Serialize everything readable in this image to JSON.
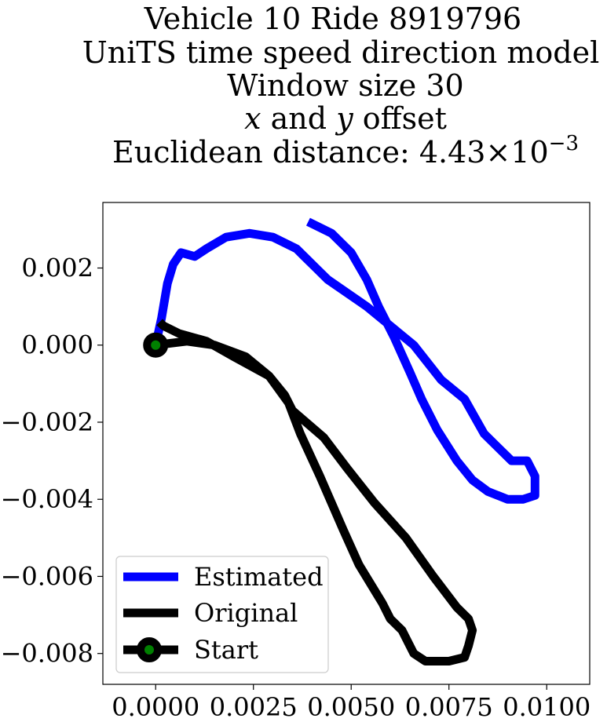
{
  "chart_data": {
    "type": "line",
    "title_lines": [
      "Vehicle 10 Ride 8919796",
      "UniTS time speed direction model",
      "Window size 30",
      "x and y offset",
      "Euclidean distance: 4.43×10⁻³"
    ],
    "title_italic_line": {
      "var1": "x",
      "middle": " and ",
      "var2": "y",
      "suffix": " offset"
    },
    "title_distance": {
      "prefix": "Euclidean distance: ",
      "mantissa": "4.43",
      "times": "×",
      "base": "10",
      "exponent": "−3"
    },
    "xlabel": "",
    "ylabel": "",
    "xlim": [
      -0.00135,
      0.0111
    ],
    "ylim": [
      -0.0088,
      0.0037
    ],
    "xticks": [
      0.0,
      0.0025,
      0.005,
      0.0075,
      0.01
    ],
    "xtick_labels": [
      "0.0000",
      "0.0025",
      "0.0050",
      "0.0075",
      "0.0100"
    ],
    "yticks": [
      0.002,
      0.0,
      -0.002,
      -0.004,
      -0.006,
      -0.008
    ],
    "ytick_labels": [
      "0.002",
      "0.000",
      "−0.002",
      "−0.004",
      "−0.006",
      "−0.008"
    ],
    "grid": false,
    "legend_position": "lower-left",
    "series": [
      {
        "name": "Estimated",
        "color": "#0000ff",
        "points": [
          [
            0.0,
            0.0
          ],
          [
            0.00015,
            0.0007
          ],
          [
            0.0003,
            0.0016
          ],
          [
            0.00045,
            0.0021
          ],
          [
            0.00065,
            0.0024
          ],
          [
            0.001,
            0.0023
          ],
          [
            0.0013,
            0.0025
          ],
          [
            0.0018,
            0.0028
          ],
          [
            0.0024,
            0.0029
          ],
          [
            0.003,
            0.0028
          ],
          [
            0.0036,
            0.0025
          ],
          [
            0.0038,
            0.0023
          ],
          [
            0.0041,
            0.002
          ],
          [
            0.0044,
            0.0017
          ],
          [
            0.0054,
            0.001
          ],
          [
            0.0066,
            0.0
          ],
          [
            0.0073,
            -0.0009
          ],
          [
            0.0079,
            -0.0014
          ],
          [
            0.0084,
            -0.0023
          ],
          [
            0.0091,
            -0.003
          ],
          [
            0.0095,
            -0.003
          ],
          [
            0.0097,
            -0.0034
          ],
          [
            0.0097,
            -0.0039
          ],
          [
            0.0094,
            -0.004
          ],
          [
            0.009,
            -0.004
          ],
          [
            0.0085,
            -0.0038
          ],
          [
            0.0081,
            -0.0035
          ],
          [
            0.0077,
            -0.003
          ],
          [
            0.0072,
            -0.0022
          ],
          [
            0.0068,
            -0.0014
          ],
          [
            0.0065,
            -0.0007
          ],
          [
            0.0061,
            0.0002
          ],
          [
            0.0057,
            0.001
          ],
          [
            0.0054,
            0.0017
          ],
          [
            0.005,
            0.0024
          ],
          [
            0.0045,
            0.0029
          ],
          [
            0.0039,
            0.0032
          ]
        ]
      },
      {
        "name": "Original",
        "color": "#000000",
        "points": [
          [
            0.0,
            0.0
          ],
          [
            0.0008,
            0.0001
          ],
          [
            0.0015,
            0.0
          ],
          [
            0.0023,
            -0.0003
          ],
          [
            0.0029,
            -0.0008
          ],
          [
            0.0033,
            -0.0013
          ],
          [
            0.0035,
            -0.0017
          ],
          [
            0.0043,
            -0.0024
          ],
          [
            0.0049,
            -0.0032
          ],
          [
            0.0056,
            -0.0041
          ],
          [
            0.0064,
            -0.005
          ],
          [
            0.0071,
            -0.006
          ],
          [
            0.0077,
            -0.0068
          ],
          [
            0.008,
            -0.0071
          ],
          [
            0.0081,
            -0.0074
          ],
          [
            0.008,
            -0.0078
          ],
          [
            0.0079,
            -0.0081
          ],
          [
            0.0075,
            -0.0082
          ],
          [
            0.0069,
            -0.0082
          ],
          [
            0.0066,
            -0.008
          ],
          [
            0.0063,
            -0.0074
          ],
          [
            0.006,
            -0.0071
          ],
          [
            0.0058,
            -0.0067
          ],
          [
            0.0052,
            -0.0057
          ],
          [
            0.0048,
            -0.0048
          ],
          [
            0.0045,
            -0.0041
          ],
          [
            0.0042,
            -0.0034
          ],
          [
            0.0037,
            -0.0023
          ],
          [
            0.0034,
            -0.0015
          ],
          [
            0.0029,
            -0.0008
          ],
          [
            0.002,
            -0.0003
          ],
          [
            0.0013,
            0.0001
          ],
          [
            0.0006,
            0.0003
          ],
          [
            0.0002,
            0.0005
          ],
          [
            0.0001,
            0.0006
          ]
        ]
      }
    ],
    "start_marker": {
      "name": "Start",
      "x": 0.0,
      "y": 0.0,
      "edge_color": "#000000",
      "face_color": "#008000",
      "line_color": "#000000"
    }
  }
}
